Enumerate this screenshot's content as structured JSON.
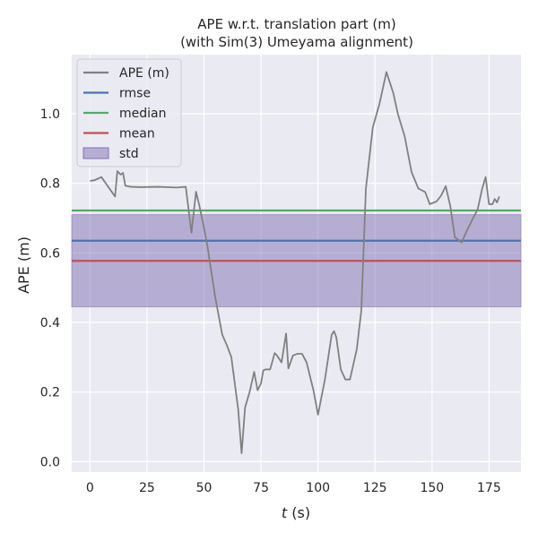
{
  "chart_data": {
    "type": "line",
    "title": "APE w.r.t. translation part (m)",
    "subtitle": "(with Sim(3) Umeyama alignment)",
    "xlabel_italic": "t",
    "xlabel_unit": " (s)",
    "ylabel": "APE (m)",
    "xlim": [
      -8,
      189
    ],
    "ylim": [
      -0.03,
      1.17
    ],
    "xticks": [
      0,
      25,
      50,
      75,
      100,
      125,
      150,
      175
    ],
    "yticks": [
      0.0,
      0.2,
      0.4,
      0.6,
      0.8,
      1.0
    ],
    "ytick_labels": [
      "0.0",
      "0.2",
      "0.4",
      "0.6",
      "0.8",
      "1.0"
    ],
    "grid": true,
    "background": "#eaeaf2",
    "legend": {
      "placement": "top-left",
      "entries": [
        {
          "label": "APE (m)",
          "kind": "line",
          "color": "#808080"
        },
        {
          "label": "rmse",
          "kind": "line",
          "color": "#4c72b0"
        },
        {
          "label": "median",
          "kind": "line",
          "color": "#55a868"
        },
        {
          "label": "mean",
          "kind": "line",
          "color": "#c44e52"
        },
        {
          "label": "std",
          "kind": "patch",
          "color": "#8172b2"
        }
      ]
    },
    "stats": {
      "rmse": 0.635,
      "median": 0.722,
      "mean": 0.577,
      "std_band": [
        0.445,
        0.71
      ]
    },
    "series": [
      {
        "name": "APE (m)",
        "color": "#808080",
        "x": [
          0,
          2,
          5,
          8,
          11,
          12,
          13.5,
          14.5,
          15.5,
          18,
          22,
          30,
          38,
          42,
          44.5,
          46.5,
          48,
          50,
          51.5,
          53,
          55,
          58,
          60,
          62,
          65,
          66.5,
          68,
          70,
          72,
          73.5,
          75,
          76,
          77,
          79,
          81,
          82,
          84,
          86,
          87,
          89,
          91,
          93,
          95,
          98,
          100,
          103,
          106,
          107,
          108,
          110,
          112,
          114,
          117,
          119,
          121,
          124,
          127,
          130,
          133,
          135,
          138,
          141,
          144,
          147,
          149,
          152,
          154,
          156,
          158,
          160,
          163,
          165,
          168,
          170,
          172,
          173.5,
          175,
          176.5,
          177.5,
          178.5,
          179.5
        ],
        "y": [
          0.807,
          0.809,
          0.818,
          0.79,
          0.762,
          0.835,
          0.825,
          0.83,
          0.793,
          0.79,
          0.789,
          0.79,
          0.788,
          0.79,
          0.658,
          0.776,
          0.735,
          0.672,
          0.62,
          0.555,
          0.47,
          0.365,
          0.335,
          0.3,
          0.15,
          0.024,
          0.155,
          0.2,
          0.258,
          0.205,
          0.225,
          0.262,
          0.265,
          0.265,
          0.312,
          0.305,
          0.285,
          0.368,
          0.268,
          0.305,
          0.31,
          0.31,
          0.285,
          0.205,
          0.135,
          0.235,
          0.365,
          0.375,
          0.358,
          0.265,
          0.236,
          0.236,
          0.323,
          0.435,
          0.785,
          0.96,
          1.03,
          1.12,
          1.06,
          1.0,
          0.935,
          0.833,
          0.785,
          0.775,
          0.74,
          0.748,
          0.765,
          0.792,
          0.735,
          0.645,
          0.63,
          0.66,
          0.7,
          0.725,
          0.785,
          0.818,
          0.74,
          0.74,
          0.755,
          0.745,
          0.762
        ]
      }
    ]
  }
}
